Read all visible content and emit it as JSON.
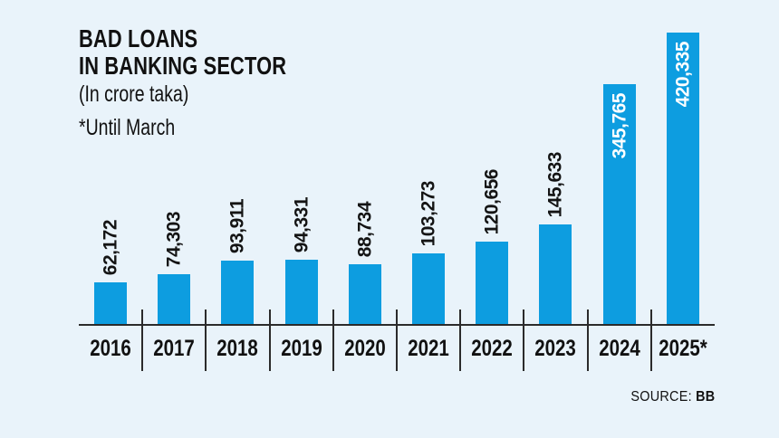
{
  "header": {
    "title_line1": "BAD LOANS",
    "title_line2": "IN BANKING SECTOR",
    "subtitle": "(In crore taka)",
    "note": "*Until March"
  },
  "source": {
    "label": "SOURCE:",
    "value": "BB"
  },
  "colors": {
    "background": "#e9f3fa",
    "bar": "#0d9de0",
    "label_dark": "#141414",
    "label_light": "#ffffff",
    "axis": "#2b2b2b",
    "text": "#111111"
  },
  "chart_data": {
    "type": "bar",
    "title": "BAD LOANS IN BANKING SECTOR",
    "unit": "In crore taka",
    "note": "*Until March",
    "categories": [
      "2016",
      "2017",
      "2018",
      "2019",
      "2020",
      "2021",
      "2022",
      "2023",
      "2024",
      "2025*"
    ],
    "values": [
      62172,
      74303,
      93911,
      94331,
      88734,
      103273,
      120656,
      145633,
      345765,
      420335
    ],
    "value_labels": [
      "62,172",
      "74,303",
      "93,911",
      "94,331",
      "88,734",
      "103,273",
      "120,656",
      "145,633",
      "345,765",
      "420,335"
    ],
    "labels_inside": [
      false,
      false,
      false,
      false,
      false,
      false,
      false,
      false,
      true,
      true
    ],
    "xlabel": "",
    "ylabel": "",
    "ylim": [
      0,
      420335
    ],
    "grid": false,
    "legend": false,
    "source": "SOURCE: BB"
  }
}
